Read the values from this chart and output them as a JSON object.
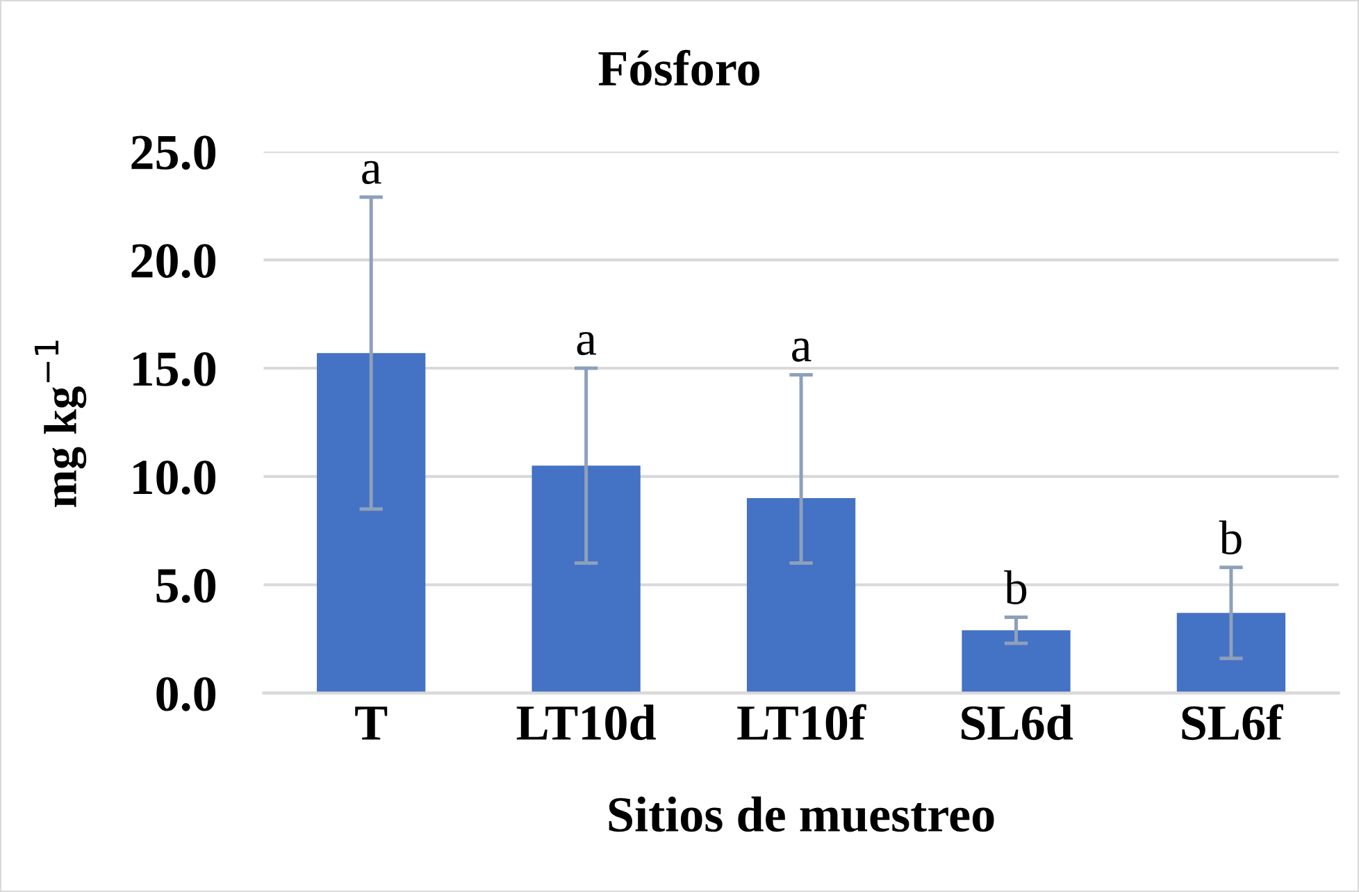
{
  "chart_data": {
    "type": "bar",
    "title": "Fósforo",
    "xlabel": "Sitios de muestreo",
    "ylabel": "mg kg$^{−1}$",
    "categories": [
      "T",
      "LT10d",
      "LT10f",
      "SL6d",
      "SL6f"
    ],
    "values": [
      15.7,
      10.5,
      9.0,
      2.9,
      3.7
    ],
    "color": "#4472c4",
    "errors": [
      7.2,
      4.5,
      [
        6.0,
        14.7
      ],
      0.6,
      2.1
    ],
    "ylim": [
      0,
      25
    ],
    "yticks": [
      {
        "value": 0,
        "label": "0.0"
      },
      {
        "value": 5,
        "label": "5.0"
      },
      {
        "value": 10,
        "label": "10.0"
      },
      {
        "value": 15,
        "label": "15.0"
      },
      {
        "value": 20,
        "label": "20.0"
      },
      {
        "value": 25,
        "label": "25.0"
      }
    ],
    "grid": "y",
    "annotations": [
      {
        "text": "a",
        "x": "T",
        "y": 22.9
      },
      {
        "text": "a",
        "x": "LT10d",
        "y": 15.0
      },
      {
        "text": "a",
        "x": "LT10f",
        "y": 14.7
      },
      {
        "text": "b",
        "x": "SL6d",
        "y": 3.5
      },
      {
        "text": "b",
        "x": "SL6f",
        "y": 5.8
      }
    ]
  }
}
